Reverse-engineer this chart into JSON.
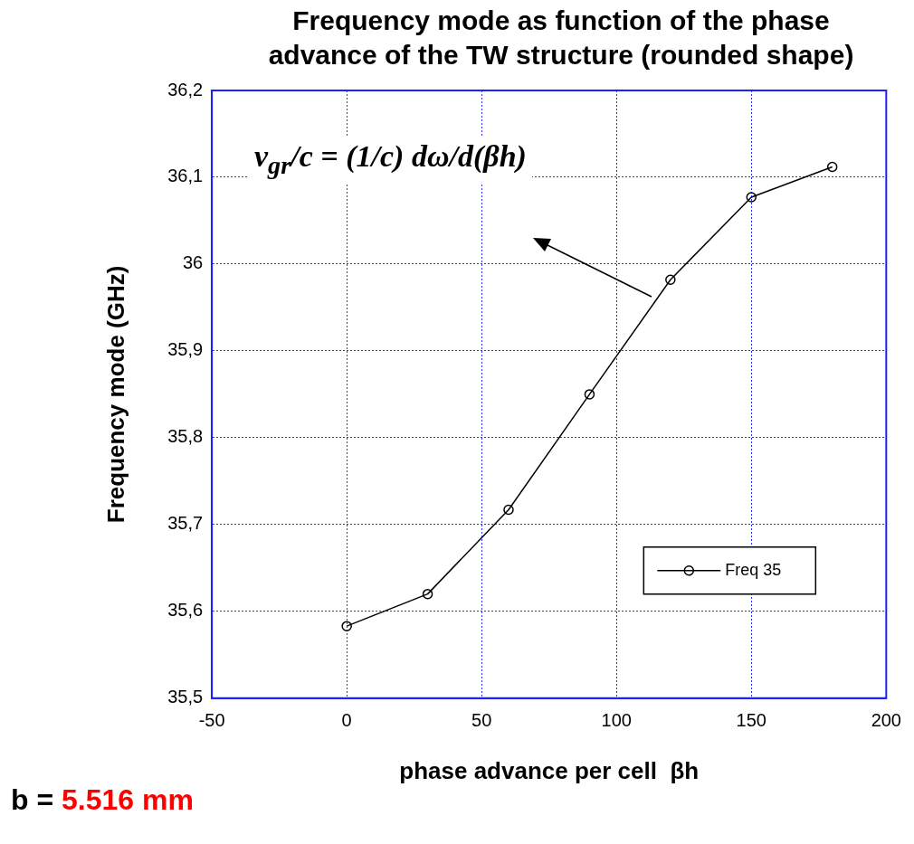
{
  "chart_data": {
    "type": "line",
    "title": "Frequency mode as function of the phase advance of the TW structure (rounded shape)",
    "xlabel": "phase advance per cell  βh",
    "ylabel": "Frequency mode (GHz)",
    "x": [
      0,
      30,
      60,
      90,
      120,
      150,
      180
    ],
    "series": [
      {
        "name": "Freq 35",
        "color": "#000000",
        "values": [
          35.583,
          35.62,
          35.717,
          35.85,
          35.982,
          36.077,
          36.112
        ]
      }
    ],
    "xlim": [
      -50,
      200
    ],
    "xticks": [
      -50,
      0,
      50,
      100,
      150,
      200
    ],
    "ylim": [
      35.5,
      36.2
    ],
    "yticks": [
      {
        "value": 35.5,
        "label": "35,5"
      },
      {
        "value": 35.6,
        "label": "35,6"
      },
      {
        "value": 35.7,
        "label": "35,7"
      },
      {
        "value": 35.8,
        "label": "35,8"
      },
      {
        "value": 35.9,
        "label": "35,9"
      },
      {
        "value": 36,
        "label": "36"
      },
      {
        "value": 36.1,
        "label": "36,1"
      },
      {
        "value": 36.2,
        "label": "36,2"
      }
    ],
    "grid": true,
    "legend": "bottom right",
    "marker": "circle",
    "line_style": "solid",
    "annotations": [
      "v$_{gr}$/c = (1/c) dω/d(βh)",
      "b = 5.516 mm"
    ]
  }
}
